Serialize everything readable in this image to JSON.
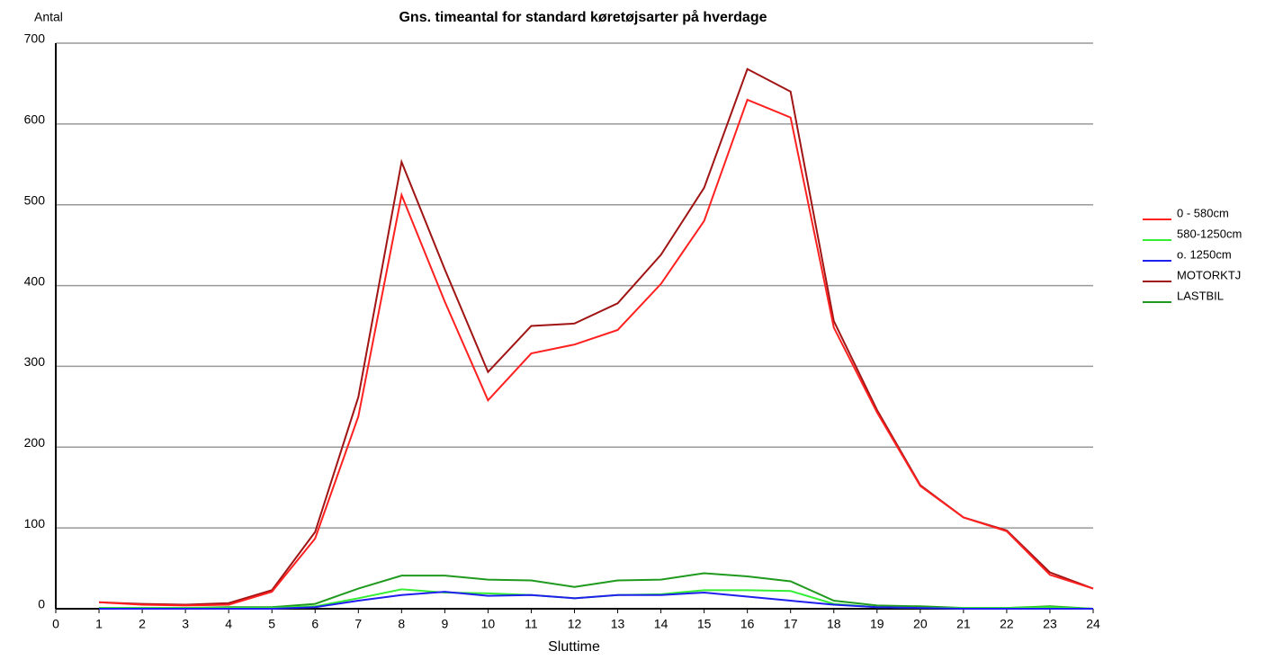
{
  "chart_data": {
    "type": "line",
    "title": "Gns. timeantal for standard køretøjsarter på hverdage",
    "ylabel": "Antal",
    "xlabel": "Sluttime",
    "x": [
      1,
      2,
      3,
      4,
      5,
      6,
      7,
      8,
      9,
      10,
      11,
      12,
      13,
      14,
      15,
      16,
      17,
      18,
      19,
      20,
      21,
      22,
      23,
      24
    ],
    "series": [
      {
        "name": "0 - 580cm",
        "color": "#ff2020",
        "values": [
          8,
          5,
          4,
          5,
          21,
          87,
          238,
          512,
          380,
          258,
          316,
          327,
          345,
          402,
          480,
          630,
          608,
          348,
          243,
          152,
          113,
          96,
          42,
          25
        ]
      },
      {
        "name": "580-1250cm",
        "color": "#33ee33",
        "values": [
          1,
          1,
          1,
          1,
          1,
          3,
          13,
          24,
          20,
          19,
          17,
          13,
          17,
          18,
          23,
          23,
          22,
          6,
          2,
          1,
          1,
          1,
          2,
          0
        ]
      },
      {
        "name": "o. 1250cm",
        "color": "#2020ee",
        "values": [
          0,
          0,
          0,
          0,
          0,
          2,
          10,
          17,
          21,
          16,
          17,
          13,
          17,
          17,
          20,
          15,
          10,
          5,
          2,
          1,
          0,
          0,
          0,
          0
        ]
      },
      {
        "name": "MOTORKTJ",
        "color": "#a01414",
        "values": [
          8,
          6,
          5,
          7,
          23,
          95,
          262,
          553,
          420,
          293,
          350,
          353,
          378,
          438,
          521,
          668,
          640,
          356,
          246,
          153,
          113,
          97,
          45,
          25
        ]
      },
      {
        "name": "LASTBIL",
        "color": "#1f9a1f",
        "values": [
          1,
          1,
          1,
          2,
          2,
          6,
          25,
          41,
          41,
          36,
          35,
          27,
          35,
          36,
          44,
          40,
          34,
          10,
          4,
          3,
          1,
          1,
          3,
          0
        ]
      }
    ],
    "xlim": [
      0,
      24
    ],
    "xticks": [
      0,
      1,
      2,
      3,
      4,
      5,
      6,
      7,
      8,
      9,
      10,
      11,
      12,
      13,
      14,
      15,
      16,
      17,
      18,
      19,
      20,
      21,
      22,
      23,
      24
    ],
    "ylim": [
      0,
      700
    ],
    "yticks": [
      0,
      100,
      200,
      300,
      400,
      500,
      600,
      700
    ],
    "grid": true,
    "legend": "right"
  }
}
